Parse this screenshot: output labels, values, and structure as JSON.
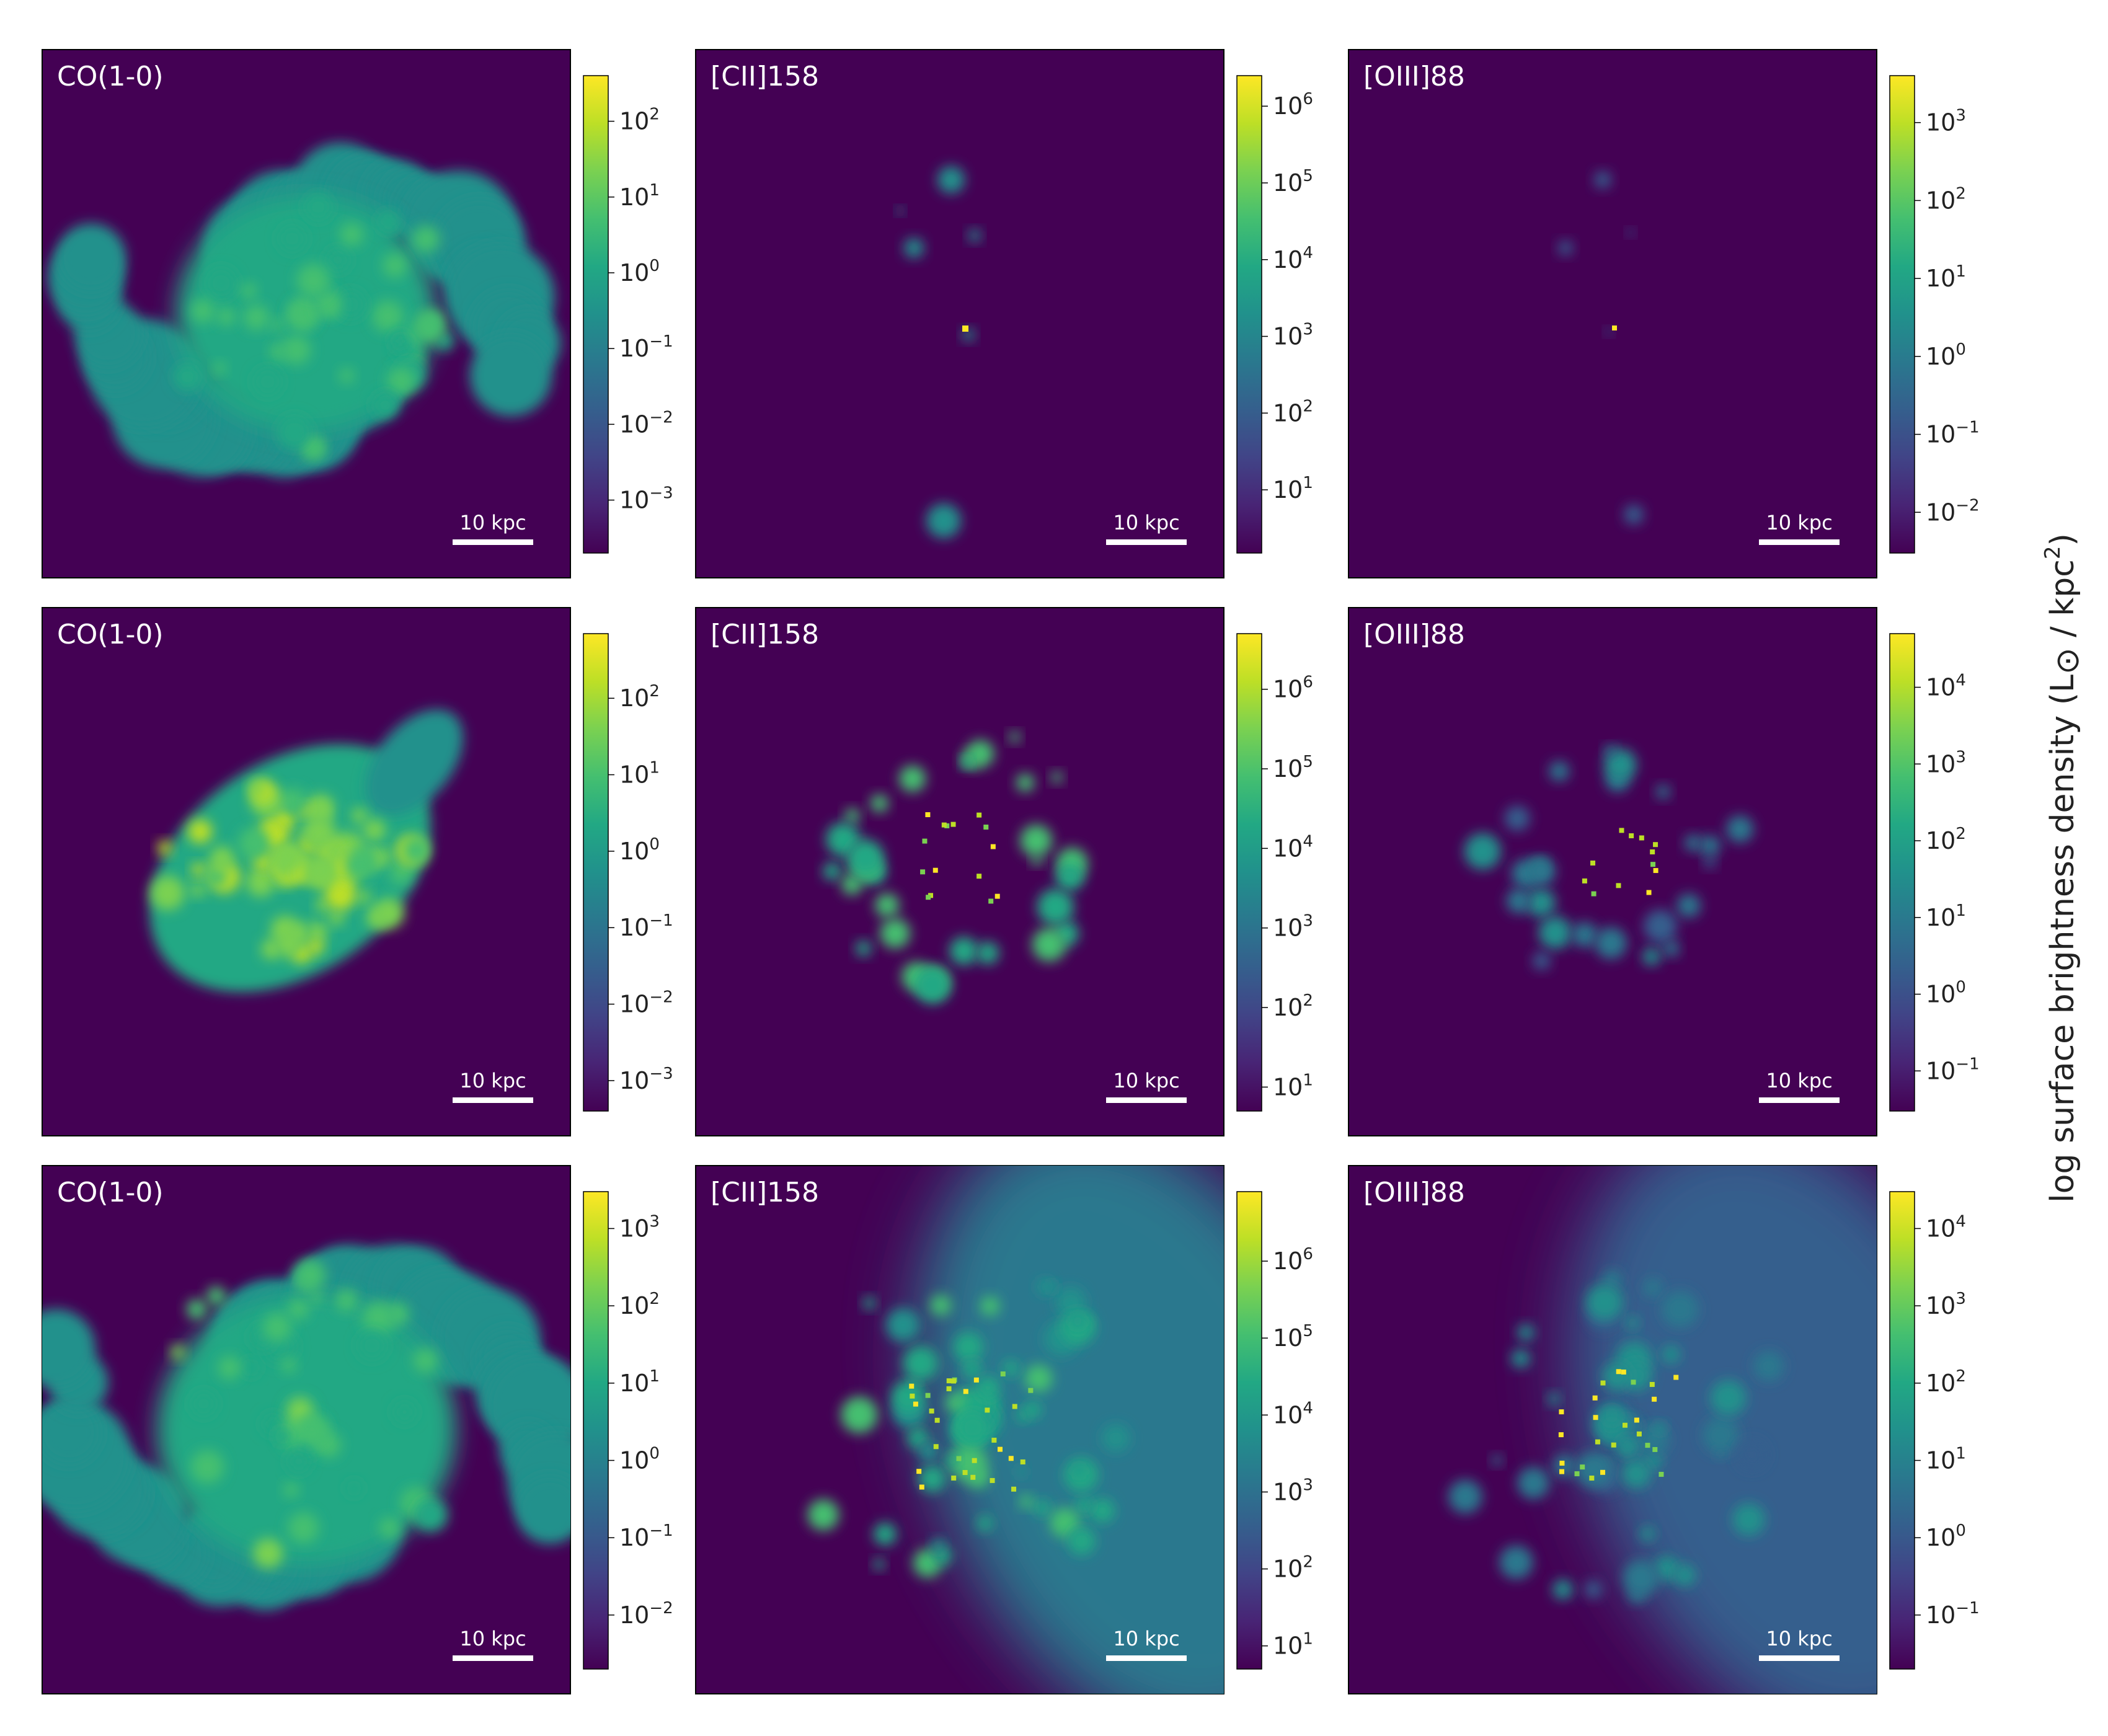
{
  "figure": {
    "ylabel_prefix": "log surface brightness density (L",
    "ylabel_sun": "⊙",
    "ylabel_mid": " / kpc",
    "ylabel_sup": "2",
    "ylabel_suffix": ")"
  },
  "colormap": [
    "#440154",
    "#482475",
    "#414487",
    "#355f8d",
    "#2a788e",
    "#21918c",
    "#22a884",
    "#44bf70",
    "#7ad151",
    "#bddf26",
    "#fde725"
  ],
  "chart_data": [
    {
      "type": "heatmap",
      "row": 0,
      "col": 0,
      "title": "CO(1-0)",
      "scalebar": "10 kpc",
      "colorbar": {
        "scale": "log",
        "vmin": 0.0002,
        "vmax": 400,
        "ticks": [
          -3,
          -2,
          -1,
          0,
          1,
          2
        ]
      },
      "morphology": "spiral-blobs"
    },
    {
      "type": "heatmap",
      "row": 0,
      "col": 1,
      "title": "[CII]158",
      "scalebar": "10 kpc",
      "colorbar": {
        "scale": "log",
        "vmin": 1.5,
        "vmax": 2500000,
        "ticks": [
          1,
          2,
          3,
          4,
          5,
          6
        ]
      },
      "morphology": "sparse-clumps"
    },
    {
      "type": "heatmap",
      "row": 0,
      "col": 2,
      "title": "[OIII]88",
      "scalebar": "10 kpc",
      "colorbar": {
        "scale": "log",
        "vmin": 0.003,
        "vmax": 4000,
        "ticks": [
          -2,
          -1,
          0,
          1,
          2,
          3
        ]
      },
      "morphology": "sparse-clumps-faint"
    },
    {
      "type": "heatmap",
      "row": 1,
      "col": 0,
      "title": "CO(1-0)",
      "scalebar": "10 kpc",
      "colorbar": {
        "scale": "log",
        "vmin": 0.0004,
        "vmax": 700,
        "ticks": [
          -3,
          -2,
          -1,
          0,
          1,
          2
        ]
      },
      "morphology": "elliptical-disk"
    },
    {
      "type": "heatmap",
      "row": 1,
      "col": 1,
      "title": "[CII]158",
      "scalebar": "10 kpc",
      "colorbar": {
        "scale": "log",
        "vmin": 5,
        "vmax": 5000000,
        "ticks": [
          1,
          2,
          3,
          4,
          5,
          6
        ]
      },
      "morphology": "ring-clumps"
    },
    {
      "type": "heatmap",
      "row": 1,
      "col": 2,
      "title": "[OIII]88",
      "scalebar": "10 kpc",
      "colorbar": {
        "scale": "log",
        "vmin": 0.03,
        "vmax": 50000,
        "ticks": [
          -1,
          0,
          1,
          2,
          3,
          4
        ]
      },
      "morphology": "ring-clumps-faint"
    },
    {
      "type": "heatmap",
      "row": 2,
      "col": 0,
      "title": "CO(1-0)",
      "scalebar": "10 kpc",
      "colorbar": {
        "scale": "log",
        "vmin": 0.002,
        "vmax": 3000,
        "ticks": [
          -2,
          -1,
          0,
          1,
          2,
          3
        ]
      },
      "morphology": "large-spiral"
    },
    {
      "type": "heatmap",
      "row": 2,
      "col": 1,
      "title": "[CII]158",
      "scalebar": "10 kpc",
      "colorbar": {
        "scale": "log",
        "vmin": 5,
        "vmax": 8000000,
        "ticks": [
          1,
          2,
          3,
          4,
          5,
          6
        ]
      },
      "morphology": "clumps-with-halo"
    },
    {
      "type": "heatmap",
      "row": 2,
      "col": 2,
      "title": "[OIII]88",
      "scalebar": "10 kpc",
      "colorbar": {
        "scale": "log",
        "vmin": 0.02,
        "vmax": 30000,
        "ticks": [
          -1,
          0,
          1,
          2,
          3,
          4
        ]
      },
      "morphology": "clumps-with-halo-faint"
    }
  ]
}
